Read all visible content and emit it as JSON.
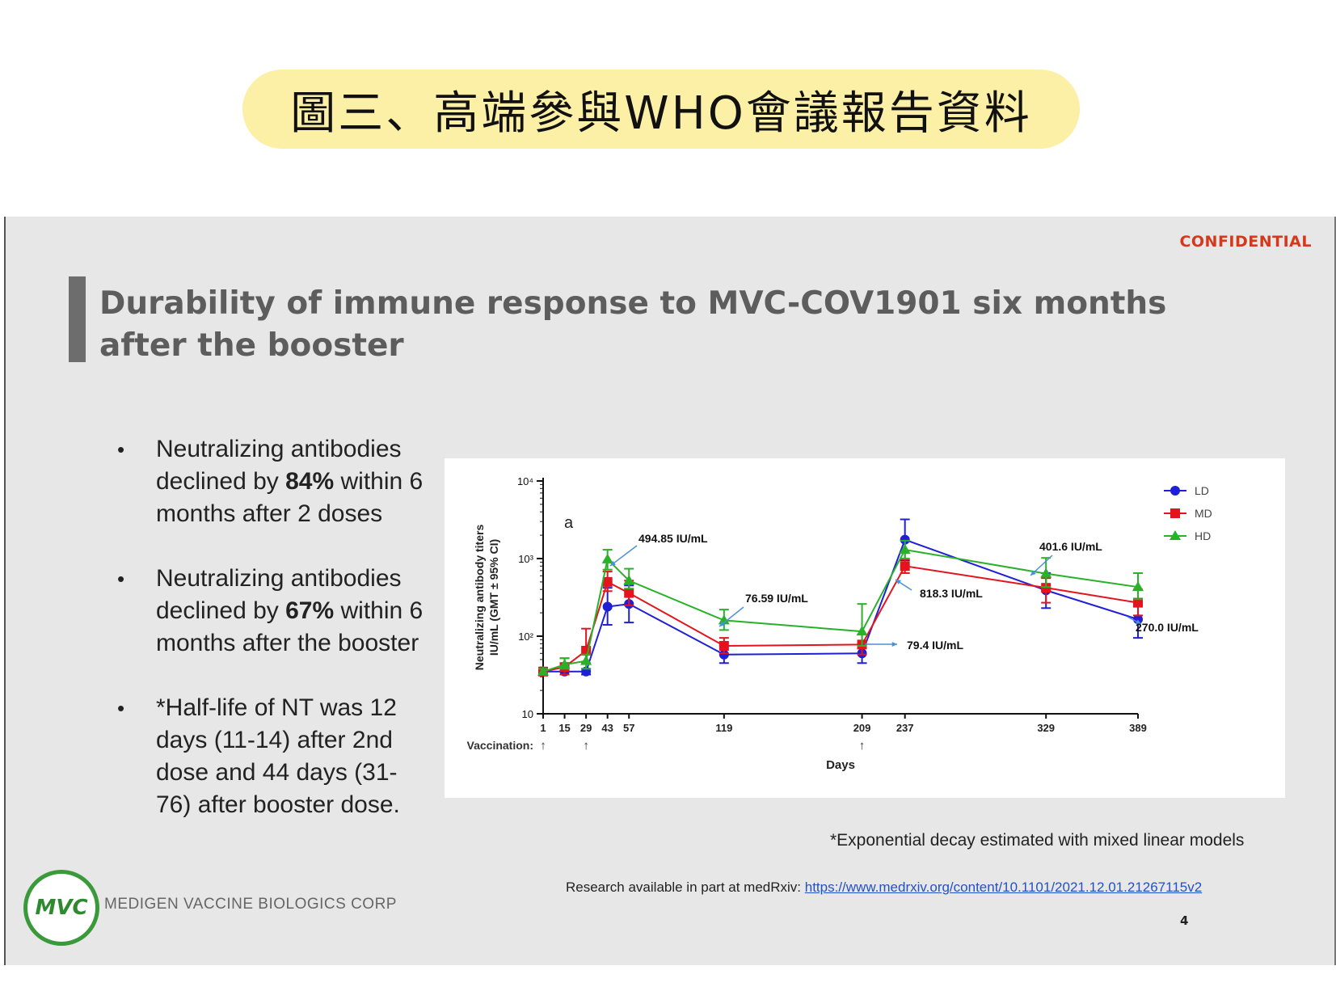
{
  "banner": {
    "title": "圖三、高端參與WHO會議報告資料"
  },
  "slide": {
    "confidential": "CONFIDENTIAL",
    "title": "Durability of immune response to MVC-COV1901 six months after the booster",
    "bullets": [
      {
        "pre": "Neutralizing antibodies declined by ",
        "strong": "84%",
        "post": " within 6 months after 2 doses"
      },
      {
        "pre": "Neutralizing antibodies declined by ",
        "strong": "67%",
        "post": " within 6 months after the booster"
      },
      {
        "pre": "*Half-life of NT was 12 days (11-14) after 2nd dose and 44 days (31-76) after booster dose.",
        "strong": "",
        "post": ""
      }
    ],
    "footnote": "*Exponential decay estimated with mixed linear models",
    "research_prefix": "Research available in part at medRxiv: ",
    "research_link": "https://www.medrxiv.org/content/10.1101/2021.12.01.21267115v2",
    "page_number": "4",
    "logo_text": "MVC",
    "company": "MEDIGEN VACCINE BIOLOGICS CORP"
  },
  "chart_data": {
    "type": "line",
    "panel_label": "a",
    "ylabel": "Neutralizing antibody titers IU/mL (GMT ± 95% CI)",
    "xlabel": "Days",
    "y_scale": "log",
    "ylim": [
      10,
      10000
    ],
    "y_ticks": [
      {
        "value": 10,
        "label": "10"
      },
      {
        "value": 100,
        "label": "10²"
      },
      {
        "value": 1000,
        "label": "10³"
      },
      {
        "value": 10000,
        "label": "10⁴"
      }
    ],
    "x_ticks": [
      1,
      15,
      29,
      43,
      57,
      119,
      209,
      237,
      329,
      389
    ],
    "xlim": [
      1,
      389
    ],
    "vaccination_label": "Vaccination:",
    "vaccination_days": [
      1,
      29,
      209
    ],
    "legend_position": "top-right",
    "series": [
      {
        "name": "LD",
        "color": "#1f1fd6",
        "marker": "circle",
        "x": [
          1,
          15,
          29,
          43,
          57,
          119,
          209,
          237,
          329,
          389
        ],
        "y": [
          35,
          35,
          35,
          240,
          260,
          58,
          60,
          1750,
          390,
          165
        ],
        "y_low": [
          32,
          32,
          32,
          140,
          150,
          45,
          45,
          950,
          230,
          95
        ],
        "y_high": [
          38,
          38,
          38,
          420,
          450,
          75,
          80,
          3200,
          650,
          290
        ]
      },
      {
        "name": "MD",
        "color": "#e3141e",
        "marker": "square",
        "x": [
          1,
          15,
          29,
          43,
          57,
          119,
          209,
          237,
          329,
          389
        ],
        "y": [
          35,
          40,
          65,
          500,
          360,
          75,
          78,
          800,
          420,
          270
        ],
        "y_low": [
          32,
          32,
          45,
          380,
          250,
          60,
          58,
          650,
          270,
          185
        ],
        "y_high": [
          38,
          52,
          125,
          680,
          520,
          95,
          105,
          980,
          560,
          400
        ]
      },
      {
        "name": "HD",
        "color": "#2ab12a",
        "marker": "triangle",
        "x": [
          1,
          15,
          29,
          43,
          57,
          119,
          209,
          237,
          329,
          389
        ],
        "y": [
          35,
          43,
          48,
          980,
          520,
          160,
          115,
          1300,
          640,
          430
        ],
        "y_low": [
          32,
          38,
          38,
          720,
          410,
          120,
          75,
          1000,
          430,
          300
        ],
        "y_high": [
          38,
          52,
          58,
          1300,
          740,
          220,
          260,
          1700,
          1020,
          650
        ]
      }
    ],
    "annotations": [
      {
        "text": "494.85 IU/mL"
      },
      {
        "text": "76.59 IU/mL"
      },
      {
        "text": "79.4 IU/mL"
      },
      {
        "text": "818.3 IU/mL"
      },
      {
        "text": "401.6 IU/mL"
      },
      {
        "text": "270.0 IU/mL"
      }
    ],
    "annotation_arrow_color": "#4a90d9"
  }
}
